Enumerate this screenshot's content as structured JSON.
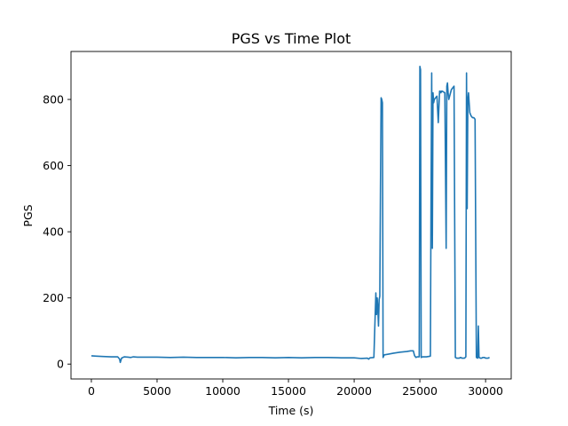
{
  "chart_data": {
    "type": "line",
    "title": "PGS vs Time Plot",
    "xlabel": "Time (s)",
    "ylabel": "PGS",
    "xlim": [
      -1550,
      31950
    ],
    "ylim": [
      -45,
      945
    ],
    "xticks": [
      0,
      5000,
      10000,
      15000,
      20000,
      25000,
      30000
    ],
    "xtick_labels": [
      "0",
      "5000",
      "10000",
      "15000",
      "20000",
      "25000",
      "30000"
    ],
    "yticks": [
      0,
      200,
      400,
      600,
      800
    ],
    "ytick_labels": [
      "0",
      "200",
      "400",
      "600",
      "800"
    ],
    "grid": false,
    "legend": "none",
    "colors": {
      "series": "#1f77b4",
      "axes": "#000000"
    },
    "series": [
      {
        "x": [
          0,
          400,
          900,
          1500,
          2000,
          2150,
          2200,
          2300,
          2500,
          2800,
          3000,
          3200,
          3500,
          4000,
          5000,
          6000,
          7000,
          8000,
          9000,
          10000,
          11000,
          12000,
          13000,
          14000,
          15000,
          16000,
          17000,
          18000,
          19000,
          20000,
          20500,
          21000,
          21100,
          21200,
          21500,
          21650,
          21700,
          21750,
          21800,
          21850,
          21900,
          21950,
          22000,
          22050,
          22100,
          22150,
          22200,
          22250,
          22300,
          22600,
          23000,
          23500,
          24000,
          24300,
          24500,
          24600,
          24700,
          24800,
          24950,
          25000,
          25050,
          25100,
          25200,
          25500,
          25800,
          25850,
          25900,
          25950,
          26000,
          26050,
          26100,
          26200,
          26300,
          26400,
          26500,
          26550,
          26600,
          26650,
          26700,
          26900,
          27000,
          27050,
          27100,
          27150,
          27200,
          27300,
          27400,
          27500,
          27600,
          27700,
          27800,
          27900,
          28000,
          28050,
          28100,
          28200,
          28400,
          28500,
          28550,
          28600,
          28650,
          28700,
          28750,
          28800,
          28850,
          28900,
          29000,
          29100,
          29200,
          29300,
          29400,
          29450,
          29500,
          29600,
          29700,
          29750,
          29800,
          29900,
          30000,
          30200,
          30300
        ],
        "y": [
          25,
          24,
          23,
          22,
          22,
          15,
          5,
          18,
          22,
          21,
          20,
          22,
          21,
          21,
          21,
          20,
          21,
          20,
          20,
          20,
          19,
          20,
          20,
          19,
          20,
          19,
          20,
          20,
          19,
          19,
          17,
          18,
          15,
          19,
          20,
          215,
          150,
          200,
          170,
          115,
          195,
          205,
          525,
          805,
          800,
          790,
          20,
          25,
          28,
          30,
          33,
          36,
          38,
          40,
          40,
          25,
          20,
          22,
          22,
          900,
          890,
          20,
          22,
          22,
          24,
          510,
          880,
          350,
          820,
          790,
          800,
          805,
          810,
          730,
          825,
          825,
          820,
          825,
          825,
          820,
          350,
          840,
          850,
          820,
          800,
          815,
          830,
          835,
          840,
          20,
          18,
          18,
          18,
          19,
          20,
          18,
          18,
          22,
          880,
          470,
          800,
          820,
          790,
          760,
          755,
          750,
          745,
          745,
          740,
          20,
          18,
          115,
          20,
          18,
          18,
          19,
          20,
          20,
          18,
          18,
          20
        ]
      }
    ]
  }
}
